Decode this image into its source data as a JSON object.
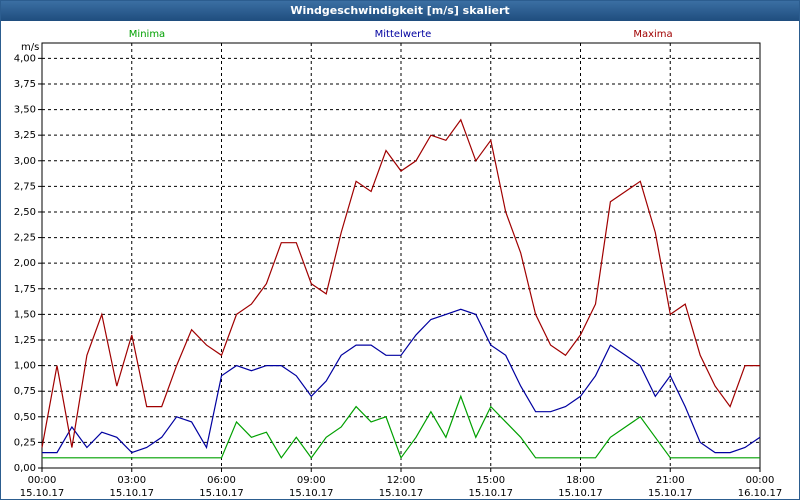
{
  "window": {
    "title": "Windgeschwindigkeit [m/s] skaliert"
  },
  "chart_data": {
    "type": "line",
    "title": "Windgeschwindigkeit [m/s] skaliert",
    "ylabel": "m/s",
    "ylim": [
      0,
      4.15
    ],
    "yticks": [
      "0,00",
      "0,25",
      "0,50",
      "0,75",
      "1,00",
      "1,25",
      "1,50",
      "1,75",
      "2,00",
      "2,25",
      "2,50",
      "2,75",
      "3,00",
      "3,25",
      "3,50",
      "3,75",
      "4,00"
    ],
    "xlim": [
      "15.10.17 00:00",
      "16.10.17 00:00"
    ],
    "xticks": [
      {
        "time": "00:00",
        "date": "15.10.17"
      },
      {
        "time": "03:00",
        "date": "15.10.17"
      },
      {
        "time": "06:00",
        "date": "15.10.17"
      },
      {
        "time": "09:00",
        "date": "15.10.17"
      },
      {
        "time": "12:00",
        "date": "15.10.17"
      },
      {
        "time": "15:00",
        "date": "15.10.17"
      },
      {
        "time": "18:00",
        "date": "15.10.17"
      },
      {
        "time": "21:00",
        "date": "15.10.17"
      },
      {
        "time": "00:00",
        "date": "16.10.17"
      }
    ],
    "grid": true,
    "legend_position": "top",
    "x_hours": [
      0,
      0.5,
      1,
      1.5,
      2,
      2.5,
      3,
      3.5,
      4,
      4.5,
      5,
      5.5,
      6,
      6.5,
      7,
      7.5,
      8,
      8.5,
      9,
      9.5,
      10,
      10.5,
      11,
      11.5,
      12,
      12.5,
      13,
      13.5,
      14,
      14.5,
      15,
      15.5,
      16,
      16.5,
      17,
      17.5,
      18,
      18.5,
      19,
      19.5,
      20,
      20.5,
      21,
      21.5,
      22,
      22.5,
      23,
      23.5,
      24
    ],
    "series": [
      {
        "name": "Minima",
        "color": "#00a000",
        "values": [
          0.1,
          0.1,
          0.1,
          0.1,
          0.1,
          0.1,
          0.1,
          0.1,
          0.1,
          0.1,
          0.1,
          0.1,
          0.1,
          0.45,
          0.3,
          0.35,
          0.1,
          0.3,
          0.1,
          0.3,
          0.4,
          0.6,
          0.45,
          0.5,
          0.1,
          0.3,
          0.55,
          0.3,
          0.7,
          0.3,
          0.6,
          0.45,
          0.3,
          0.1,
          0.1,
          0.1,
          0.1,
          0.1,
          0.3,
          0.4,
          0.5,
          0.3,
          0.1,
          0.1,
          0.1,
          0.1,
          0.1,
          0.1,
          0.1
        ]
      },
      {
        "name": "Mittelwerte",
        "color": "#0000a0",
        "values": [
          0.15,
          0.15,
          0.4,
          0.2,
          0.35,
          0.3,
          0.15,
          0.2,
          0.3,
          0.5,
          0.45,
          0.2,
          0.9,
          1.0,
          0.95,
          1.0,
          1.0,
          0.9,
          0.7,
          0.85,
          1.1,
          1.2,
          1.2,
          1.1,
          1.1,
          1.3,
          1.45,
          1.5,
          1.55,
          1.5,
          1.2,
          1.1,
          0.8,
          0.55,
          0.55,
          0.6,
          0.7,
          0.9,
          1.2,
          1.1,
          1.0,
          0.7,
          0.9,
          0.6,
          0.25,
          0.15,
          0.15,
          0.2,
          0.3
        ]
      },
      {
        "name": "Maxima",
        "color": "#a00000",
        "values": [
          0.2,
          1.0,
          0.2,
          1.1,
          1.5,
          0.8,
          1.3,
          0.6,
          0.6,
          1.0,
          1.35,
          1.2,
          1.1,
          1.5,
          1.6,
          1.8,
          2.2,
          2.2,
          1.8,
          1.7,
          2.3,
          2.8,
          2.7,
          3.1,
          2.9,
          3.0,
          3.25,
          3.2,
          3.4,
          3.0,
          3.2,
          2.5,
          2.1,
          1.5,
          1.2,
          1.1,
          1.3,
          1.6,
          2.6,
          2.7,
          2.8,
          2.3,
          1.5,
          1.6,
          1.1,
          0.8,
          0.6,
          1.0,
          1.0
        ]
      }
    ]
  }
}
